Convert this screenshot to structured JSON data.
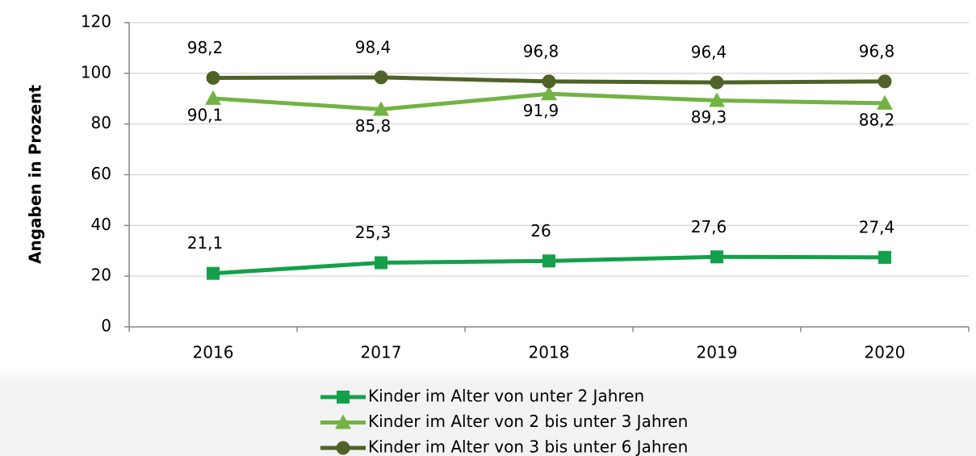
{
  "chart_data": {
    "type": "line",
    "ylabel": "Angaben in Prozent",
    "categories": [
      "2016",
      "2017",
      "2018",
      "2019",
      "2020"
    ],
    "series": [
      {
        "name": "Kinder im Alter von unter 2 Jahren",
        "color": "#14a04a",
        "marker": "square",
        "label_position": "above",
        "values": [
          21.1,
          25.3,
          26,
          27.6,
          27.4
        ],
        "value_labels": [
          "21,1",
          "25,3",
          "26",
          "27,6",
          "27,4"
        ]
      },
      {
        "name": "Kinder im Alter von 2 bis unter 3 Jahren",
        "color": "#72b344",
        "marker": "triangle",
        "label_position": "below",
        "values": [
          90.1,
          85.8,
          91.9,
          89.3,
          88.2
        ],
        "value_labels": [
          "90,1",
          "85,8",
          "91,9",
          "89,3",
          "88,2"
        ]
      },
      {
        "name": "Kinder im Alter von 3 bis unter 6 Jahren",
        "color": "#4f6228",
        "marker": "circle",
        "label_position": "above",
        "values": [
          98.2,
          98.4,
          96.8,
          96.4,
          96.8
        ],
        "value_labels": [
          "98,2",
          "98,4",
          "96,8",
          "96,4",
          "96,8"
        ]
      }
    ],
    "ylim": [
      0,
      120
    ],
    "yticks": [
      0,
      20,
      40,
      60,
      80,
      100,
      120
    ],
    "grid": true
  }
}
